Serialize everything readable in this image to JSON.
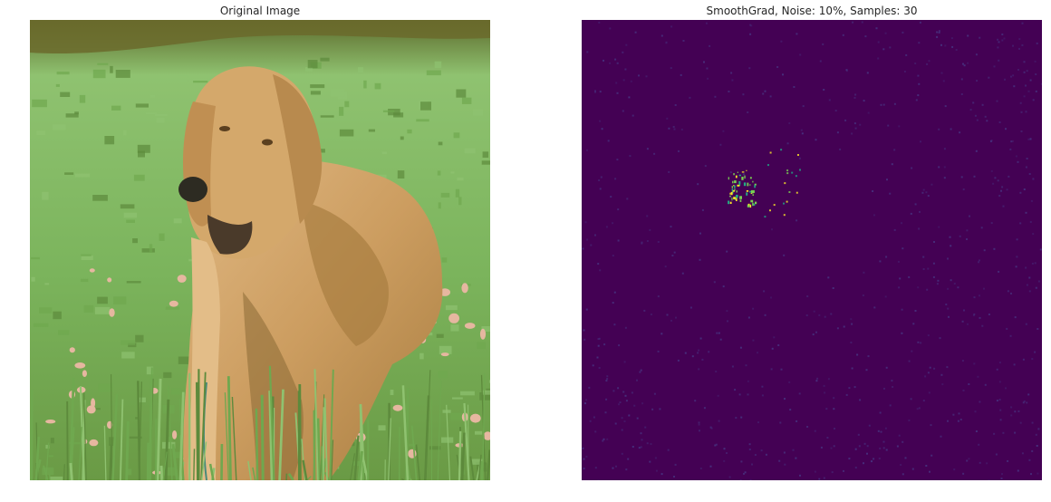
{
  "figure": {
    "panels": [
      {
        "title": "Original Image",
        "content": "photo of a golden retriever dog lying in green grass with pink flowers",
        "colors": {
          "grass_light": "#8fc270",
          "grass_mid": "#6fa84f",
          "grass_dark": "#5d8a3c",
          "shadow": "#6b6a2c",
          "fur_light": "#e0b883",
          "fur_mid": "#c99a5e",
          "fur_dark": "#8a6a35",
          "flower": "#e6b7a0"
        }
      },
      {
        "title": "SmoothGrad, Noise: 10%, Samples: 30",
        "content": "saliency heatmap (viridis colormap) highlighting the dog's eye region",
        "colors": {
          "background": "#440154",
          "speckle": "#472d7b",
          "highlight_green": "#7ad151",
          "highlight_yellow": "#fde725",
          "highlight_teal": "#22a884"
        }
      }
    ]
  }
}
